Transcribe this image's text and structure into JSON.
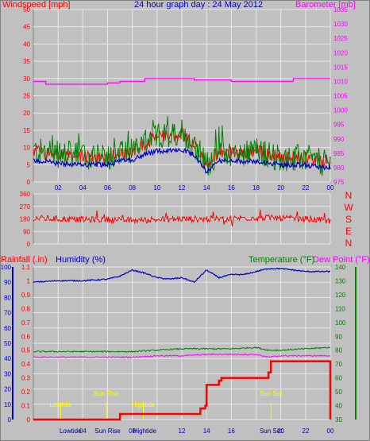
{
  "title": "24 hour graph day : 24 May 2012",
  "colors": {
    "background": "#c0c0c0",
    "plot_bg": "#c0c0c0",
    "grid": "#e8e8e8",
    "wind": "#ff0000",
    "wind_gust": "#008000",
    "wind_avg": "#0000cc",
    "barometer": "#ff00ff",
    "direction": "#ff0000",
    "rain": "#ff0000",
    "humidity": "#0000cc",
    "temperature": "#008000",
    "dewpoint": "#ff00ff",
    "marker": "#ffff00",
    "hour_label": "#0000cc"
  },
  "chart_data": [
    {
      "type": "line",
      "title": "24 hour graph day : 24 May 2012",
      "left_axis_label": "Windspeed [mph]",
      "right_axis_label": "Barometer [mb]",
      "x_ticks": [
        "02",
        "04",
        "06",
        "08",
        "10",
        "12",
        "14",
        "16",
        "18",
        "20",
        "22",
        "00"
      ],
      "left_ticks": [
        "0",
        "5",
        "10",
        "15",
        "20",
        "25",
        "30",
        "35",
        "40",
        "45",
        "50"
      ],
      "right_ticks": [
        "975",
        "980",
        "985",
        "990",
        "995",
        "1000",
        "1005",
        "1010",
        "1015",
        "1020",
        "1025",
        "1030",
        "1035"
      ],
      "ylim_left": [
        0,
        50
      ],
      "ylim_right": [
        975,
        1035
      ],
      "grid": true,
      "series": [
        {
          "name": "Windspeed gust",
          "x_hours": [
            0,
            1,
            2,
            3,
            4,
            5,
            6,
            7,
            8,
            9,
            10,
            11,
            12,
            13,
            14,
            15,
            16,
            17,
            18,
            19,
            20,
            21,
            22,
            23,
            24
          ],
          "values": [
            9,
            8.5,
            8,
            8,
            7.5,
            7,
            7.5,
            8,
            9,
            11,
            13,
            13.5,
            14,
            11,
            5,
            9,
            8.5,
            8,
            9,
            8,
            7,
            7,
            7,
            6,
            5
          ]
        },
        {
          "name": "Windspeed average",
          "x_hours": [
            0,
            1,
            2,
            3,
            4,
            5,
            6,
            7,
            8,
            9,
            10,
            11,
            12,
            13,
            14,
            15,
            16,
            17,
            18,
            19,
            20,
            21,
            22,
            23,
            24
          ],
          "values": [
            6,
            6,
            5.5,
            5,
            5,
            5,
            5,
            6,
            6.5,
            8,
            9,
            9,
            9.5,
            8,
            3,
            6,
            6,
            6,
            6,
            5.5,
            5,
            5,
            5,
            4.5,
            4
          ]
        },
        {
          "name": "Barometer",
          "x_hours": [
            0,
            1,
            2,
            3,
            4,
            5,
            6,
            7,
            8,
            9,
            10,
            11,
            12,
            13,
            14,
            15,
            16,
            17,
            18,
            19,
            20,
            21,
            22,
            23,
            24
          ],
          "values": [
            1010,
            1009,
            1009,
            1009,
            1009,
            1009,
            1009.5,
            1010,
            1010,
            1011,
            1011,
            1011,
            1011,
            1010.5,
            1010.5,
            1010.5,
            1010,
            1010,
            1010,
            1010,
            1010,
            1011,
            1011,
            1011,
            1011
          ]
        }
      ]
    },
    {
      "type": "line",
      "title": "",
      "right_axis_label": [
        "N",
        "W",
        "S",
        "E",
        "N"
      ],
      "x_ticks": [],
      "left_ticks": [
        "360",
        "270",
        "180",
        "90",
        "0"
      ],
      "ylim": [
        0,
        360
      ],
      "grid": true,
      "series": [
        {
          "name": "Wind direction",
          "x_hours": [
            0,
            2,
            4,
            6,
            8,
            10,
            12,
            14,
            16,
            18,
            20,
            22,
            24
          ],
          "values": [
            185,
            180,
            175,
            175,
            170,
            175,
            180,
            178,
            182,
            190,
            185,
            180,
            165
          ]
        }
      ]
    },
    {
      "type": "line",
      "title": "",
      "labels": {
        "rainfall": "Rainfall (.in)",
        "humidity": "Humidity (%)",
        "temperature": "Temperature (°F)",
        "dewpoint": "Dew Point (°F)"
      },
      "x_ticks": [
        "Lowtide",
        "04",
        "Sun Rise",
        "08",
        "Hightide",
        "12",
        "14",
        "16",
        "Sun Set",
        "20",
        "22",
        "00"
      ],
      "left_ticks": [
        "0",
        "10",
        "20",
        "30",
        "40",
        "50",
        "60",
        "70",
        "80",
        "90",
        "100"
      ],
      "rain_ticks": [
        "0",
        "0.1",
        "0.2",
        "0.3",
        "0.4",
        "0.5",
        "0.6",
        "0.7",
        "0.8",
        "0.9",
        "1",
        "1.1"
      ],
      "right_ticks": [
        "30",
        "40",
        "50",
        "60",
        "70",
        "80",
        "90",
        "100",
        "110",
        "120",
        "130",
        "140"
      ],
      "ylim_left": [
        0,
        100
      ],
      "ylim_rain": [
        0,
        1.1
      ],
      "ylim_right": [
        30,
        140
      ],
      "markers": [
        {
          "label": "Lowtide",
          "hour": 2.2
        },
        {
          "label": "Sun Rise",
          "hour": 5.9
        },
        {
          "label": "Hightide",
          "hour": 8.9
        },
        {
          "label": "Sun Set",
          "hour": 19.2
        }
      ],
      "grid": true,
      "series": [
        {
          "name": "Humidity",
          "x_hours": [
            0,
            2,
            4,
            6,
            7,
            8,
            9,
            10,
            11,
            12,
            13,
            14,
            15,
            16,
            17,
            18,
            19,
            20,
            21,
            22,
            23,
            24
          ],
          "values": [
            90,
            91,
            91,
            92,
            94,
            98,
            96,
            93,
            92,
            93,
            90,
            98,
            93,
            95,
            95,
            97,
            99,
            99,
            98,
            97,
            97,
            97
          ]
        },
        {
          "name": "Temperature",
          "x_hours": [
            0,
            2,
            4,
            6,
            8,
            10,
            12,
            14,
            16,
            18,
            19,
            20,
            22,
            24
          ],
          "values": [
            79,
            79,
            79,
            79,
            79,
            80,
            81,
            81,
            81,
            82,
            80,
            80,
            81,
            82
          ]
        },
        {
          "name": "Dew Point",
          "x_hours": [
            0,
            2,
            4,
            6,
            8,
            10,
            12,
            14,
            16,
            18,
            19,
            20,
            22,
            24
          ],
          "values": [
            75,
            75,
            75,
            75,
            75,
            76,
            76,
            77,
            77,
            77,
            75,
            76,
            76,
            76
          ]
        },
        {
          "name": "Rainfall",
          "x_hours": [
            0,
            6.9,
            7,
            13.4,
            13.5,
            13.9,
            14,
            15,
            15.2,
            19,
            19.2,
            24,
            24.1
          ],
          "values": [
            0,
            0,
            0.04,
            0.04,
            0.08,
            0.1,
            0.25,
            0.28,
            0.3,
            0.34,
            0.42,
            0.42,
            0
          ]
        }
      ]
    }
  ]
}
